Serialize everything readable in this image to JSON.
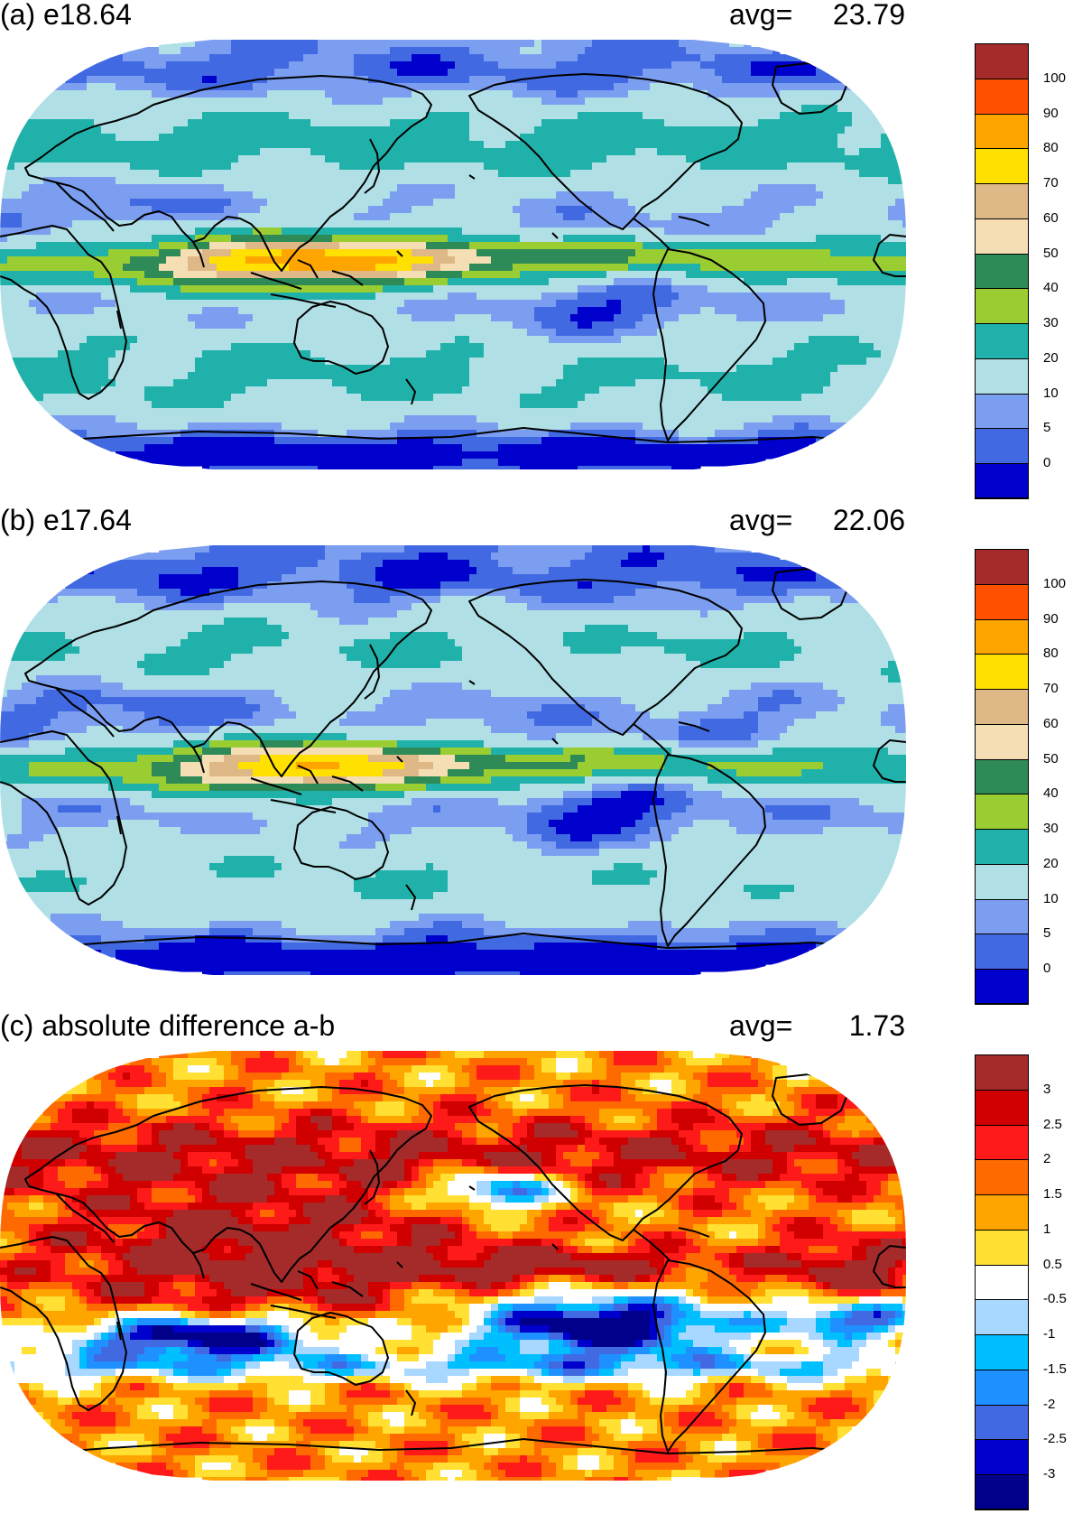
{
  "panels": [
    {
      "id": "a",
      "label": "(a) e18.64",
      "avg_label": "avg=",
      "avg_value": "23.79",
      "scale": "precip",
      "pattern": "precip_a"
    },
    {
      "id": "b",
      "label": "(b) e17.64",
      "avg_label": "avg=",
      "avg_value": "22.06",
      "scale": "precip",
      "pattern": "precip_b"
    },
    {
      "id": "c",
      "label": "(c) absolute difference a-b",
      "avg_label": "avg=",
      "avg_value": "1.73",
      "scale": "diff",
      "pattern": "diff"
    }
  ],
  "scales": {
    "precip": {
      "colors": [
        "#a52a2a",
        "#ff5000",
        "#ffa500",
        "#ffe000",
        "#deb887",
        "#f5deb3",
        "#2e8b57",
        "#9acd32",
        "#20b2aa",
        "#b0e0e6",
        "#7b9ef0",
        "#4169e1",
        "#0000cd"
      ],
      "ticks": [
        "100",
        "90",
        "80",
        "70",
        "60",
        "50",
        "40",
        "30",
        "20",
        "10",
        "5",
        "0"
      ]
    },
    "diff": {
      "colors": [
        "#a52a2a",
        "#d00000",
        "#ff1a1a",
        "#ff6a00",
        "#ffa500",
        "#ffe033",
        "#ffffff",
        "#a8d8ff",
        "#00bfff",
        "#1e90ff",
        "#4169e1",
        "#0000cd",
        "#00008b"
      ],
      "ticks": [
        "3",
        "2.5",
        "2",
        "1.5",
        "1",
        "0.5",
        "-0.5",
        "-1",
        "-1.5",
        "-2",
        "-2.5",
        "-3"
      ]
    }
  }
}
